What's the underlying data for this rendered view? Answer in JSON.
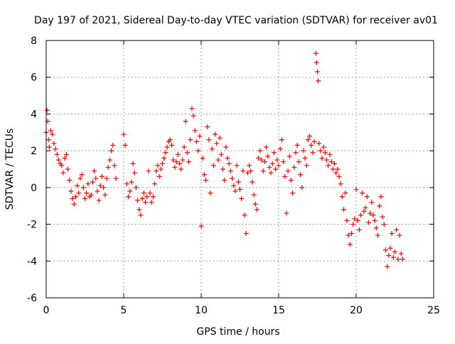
{
  "chart_data": {
    "type": "scatter",
    "title": "Day 197 of 2021, Sidereal Day-to-day VTEC variation (SDTVAR) for receiver av01",
    "xlabel": "GPS time / hours",
    "ylabel": "SDTVAR / TECUs",
    "xlim": [
      0,
      25
    ],
    "ylim": [
      -6,
      8
    ],
    "xticks": [
      0,
      5,
      10,
      15,
      20,
      25
    ],
    "yticks": [
      -6,
      -4,
      -2,
      0,
      2,
      4,
      6,
      8
    ],
    "grid": true,
    "marker": "+",
    "color": "#ff0000",
    "series": [
      {
        "name": "SDTVAR",
        "points": [
          [
            0.0,
            3.0
          ],
          [
            0.05,
            4.2
          ],
          [
            0.1,
            3.6
          ],
          [
            0.15,
            2.6
          ],
          [
            0.2,
            2.2
          ],
          [
            0.3,
            3.1
          ],
          [
            0.4,
            2.9
          ],
          [
            0.5,
            2.4
          ],
          [
            0.6,
            2.1
          ],
          [
            0.7,
            1.8
          ],
          [
            0.8,
            1.5
          ],
          [
            0.9,
            1.3
          ],
          [
            1.0,
            1.2
          ],
          [
            1.1,
            0.8
          ],
          [
            1.2,
            1.6
          ],
          [
            1.3,
            1.8
          ],
          [
            1.4,
            1.0
          ],
          [
            1.5,
            0.4
          ],
          [
            1.6,
            -0.2
          ],
          [
            1.7,
            -0.6
          ],
          [
            1.8,
            -0.9
          ],
          [
            1.9,
            -0.5
          ],
          [
            2.0,
            0.1
          ],
          [
            2.1,
            -0.3
          ],
          [
            2.2,
            0.5
          ],
          [
            2.3,
            0.7
          ],
          [
            2.4,
            0.0
          ],
          [
            2.5,
            -0.6
          ],
          [
            2.6,
            -0.3
          ],
          [
            2.7,
            0.2
          ],
          [
            2.8,
            -0.5
          ],
          [
            2.9,
            -0.4
          ],
          [
            3.0,
            0.3
          ],
          [
            3.1,
            0.9
          ],
          [
            3.2,
            0.5
          ],
          [
            3.3,
            -0.2
          ],
          [
            3.4,
            -0.7
          ],
          [
            3.5,
            0.1
          ],
          [
            3.6,
            0.6
          ],
          [
            3.7,
            0.0
          ],
          [
            3.8,
            -0.4
          ],
          [
            3.9,
            0.5
          ],
          [
            4.0,
            1.1
          ],
          [
            4.1,
            1.5
          ],
          [
            4.2,
            2.0
          ],
          [
            4.3,
            2.3
          ],
          [
            4.4,
            1.2
          ],
          [
            4.5,
            0.5
          ],
          [
            5.0,
            2.9
          ],
          [
            5.1,
            2.3
          ],
          [
            5.2,
            0.2
          ],
          [
            5.3,
            -0.5
          ],
          [
            5.4,
            -0.2
          ],
          [
            5.5,
            0.3
          ],
          [
            5.6,
            1.3
          ],
          [
            5.7,
            0.8
          ],
          [
            5.8,
            0.0
          ],
          [
            5.9,
            -0.7
          ],
          [
            6.0,
            -1.2
          ],
          [
            6.1,
            -1.5
          ],
          [
            6.2,
            -0.6
          ],
          [
            6.3,
            -0.3
          ],
          [
            6.4,
            -0.8
          ],
          [
            6.5,
            -0.5
          ],
          [
            6.6,
            0.9
          ],
          [
            6.7,
            -0.3
          ],
          [
            6.8,
            -0.8
          ],
          [
            6.9,
            -0.5
          ],
          [
            7.0,
            0.2
          ],
          [
            7.1,
            0.9
          ],
          [
            7.2,
            1.2
          ],
          [
            7.3,
            0.6
          ],
          [
            7.4,
            1.0
          ],
          [
            7.5,
            1.3
          ],
          [
            7.6,
            1.6
          ],
          [
            7.7,
            1.9
          ],
          [
            7.8,
            2.2
          ],
          [
            7.9,
            2.5
          ],
          [
            8.0,
            2.6
          ],
          [
            8.1,
            2.3
          ],
          [
            8.2,
            1.5
          ],
          [
            8.3,
            1.1
          ],
          [
            8.4,
            1.4
          ],
          [
            8.5,
            1.8
          ],
          [
            8.6,
            1.3
          ],
          [
            8.7,
            1.0
          ],
          [
            8.8,
            1.5
          ],
          [
            8.9,
            2.2
          ],
          [
            9.0,
            3.6
          ],
          [
            9.1,
            1.9
          ],
          [
            9.2,
            1.4
          ],
          [
            9.3,
            2.6
          ],
          [
            9.4,
            4.3
          ],
          [
            9.5,
            3.9
          ],
          [
            9.6,
            3.1
          ],
          [
            9.7,
            2.5
          ],
          [
            9.8,
            2.0
          ],
          [
            9.9,
            2.8
          ],
          [
            10.0,
            -2.1
          ],
          [
            10.1,
            1.6
          ],
          [
            10.2,
            0.7
          ],
          [
            10.3,
            0.4
          ],
          [
            10.4,
            3.3
          ],
          [
            10.5,
            2.6
          ],
          [
            10.6,
            -0.3
          ],
          [
            10.7,
            2.1
          ],
          [
            10.8,
            1.2
          ],
          [
            10.9,
            2.9
          ],
          [
            11.0,
            2.4
          ],
          [
            11.1,
            1.5
          ],
          [
            11.2,
            2.7
          ],
          [
            11.3,
            1.8
          ],
          [
            11.4,
            1.0
          ],
          [
            11.5,
            0.4
          ],
          [
            11.6,
            2.2
          ],
          [
            11.7,
            1.6
          ],
          [
            11.8,
            1.3
          ],
          [
            11.9,
            0.9
          ],
          [
            12.0,
            0.5
          ],
          [
            12.1,
            0.1
          ],
          [
            12.2,
            -0.2
          ],
          [
            12.3,
            1.2
          ],
          [
            12.4,
            0.3
          ],
          [
            12.5,
            -0.1
          ],
          [
            12.6,
            -0.6
          ],
          [
            12.7,
            0.9
          ],
          [
            12.8,
            -1.5
          ],
          [
            12.9,
            -2.5
          ],
          [
            13.0,
            0.8
          ],
          [
            13.1,
            1.2
          ],
          [
            13.2,
            0.9
          ],
          [
            13.3,
            0.3
          ],
          [
            13.4,
            -0.4
          ],
          [
            13.5,
            -0.9
          ],
          [
            13.6,
            -1.2
          ],
          [
            13.7,
            1.6
          ],
          [
            13.8,
            2.0
          ],
          [
            13.9,
            1.5
          ],
          [
            14.0,
            0.9
          ],
          [
            14.1,
            1.4
          ],
          [
            14.2,
            2.2
          ],
          [
            14.3,
            1.7
          ],
          [
            14.4,
            1.1
          ],
          [
            14.5,
            0.8
          ],
          [
            14.6,
            1.3
          ],
          [
            14.7,
            1.9
          ],
          [
            14.8,
            1.0
          ],
          [
            14.9,
            1.5
          ],
          [
            15.0,
            1.2
          ],
          [
            15.1,
            2.1
          ],
          [
            15.2,
            2.6
          ],
          [
            15.3,
            1.4
          ],
          [
            15.4,
            0.6
          ],
          [
            15.5,
            -1.4
          ],
          [
            15.6,
            0.9
          ],
          [
            15.7,
            1.7
          ],
          [
            15.8,
            0.4
          ],
          [
            15.9,
            -0.3
          ],
          [
            16.0,
            1.1
          ],
          [
            16.1,
            1.9
          ],
          [
            16.2,
            2.3
          ],
          [
            16.3,
            1.4
          ],
          [
            16.4,
            0.7
          ],
          [
            16.5,
            0.0
          ],
          [
            16.6,
            2.0
          ],
          [
            16.7,
            1.6
          ],
          [
            16.8,
            1.2
          ],
          [
            16.9,
            2.6
          ],
          [
            17.0,
            2.8
          ],
          [
            17.1,
            2.3
          ],
          [
            17.2,
            1.9
          ],
          [
            17.3,
            2.5
          ],
          [
            17.4,
            7.3
          ],
          [
            17.45,
            6.8
          ],
          [
            17.5,
            6.3
          ],
          [
            17.55,
            5.8
          ],
          [
            17.6,
            2.4
          ],
          [
            17.7,
            2.0
          ],
          [
            17.8,
            1.6
          ],
          [
            17.9,
            2.2
          ],
          [
            18.0,
            1.9
          ],
          [
            18.1,
            1.5
          ],
          [
            18.2,
            1.2
          ],
          [
            18.3,
            1.8
          ],
          [
            18.4,
            1.4
          ],
          [
            18.5,
            1.0
          ],
          [
            18.6,
            1.3
          ],
          [
            18.7,
            0.8
          ],
          [
            18.8,
            1.0
          ],
          [
            18.9,
            0.6
          ],
          [
            19.0,
            0.2
          ],
          [
            19.1,
            -0.5
          ],
          [
            19.2,
            -1.2
          ],
          [
            19.3,
            -0.3
          ],
          [
            19.4,
            -1.8
          ],
          [
            19.5,
            -2.6
          ],
          [
            19.6,
            -3.1
          ],
          [
            19.7,
            -2.5
          ],
          [
            19.8,
            -2.0
          ],
          [
            19.9,
            -1.7
          ],
          [
            20.0,
            -0.1
          ],
          [
            20.1,
            -1.8
          ],
          [
            20.2,
            -2.3
          ],
          [
            20.3,
            -1.5
          ],
          [
            20.4,
            -0.3
          ],
          [
            20.5,
            -1.3
          ],
          [
            20.6,
            -1.1
          ],
          [
            20.7,
            -0.5
          ],
          [
            20.8,
            -1.9
          ],
          [
            20.9,
            -1.4
          ],
          [
            21.0,
            -0.8
          ],
          [
            21.1,
            -1.5
          ],
          [
            21.2,
            -1.8
          ],
          [
            21.3,
            -2.2
          ],
          [
            21.4,
            -2.6
          ],
          [
            21.5,
            -1.0
          ],
          [
            21.6,
            -0.5
          ],
          [
            21.7,
            -1.6
          ],
          [
            21.8,
            -2.0
          ],
          [
            21.9,
            -3.4
          ],
          [
            22.0,
            -4.3
          ],
          [
            22.1,
            -3.7
          ],
          [
            22.2,
            -3.3
          ],
          [
            22.3,
            -2.5
          ],
          [
            22.4,
            -3.8
          ],
          [
            22.5,
            -3.5
          ],
          [
            22.6,
            -2.3
          ],
          [
            22.7,
            -3.9
          ],
          [
            22.8,
            -2.6
          ],
          [
            22.9,
            -3.6
          ],
          [
            23.0,
            -3.9
          ]
        ]
      }
    ]
  }
}
